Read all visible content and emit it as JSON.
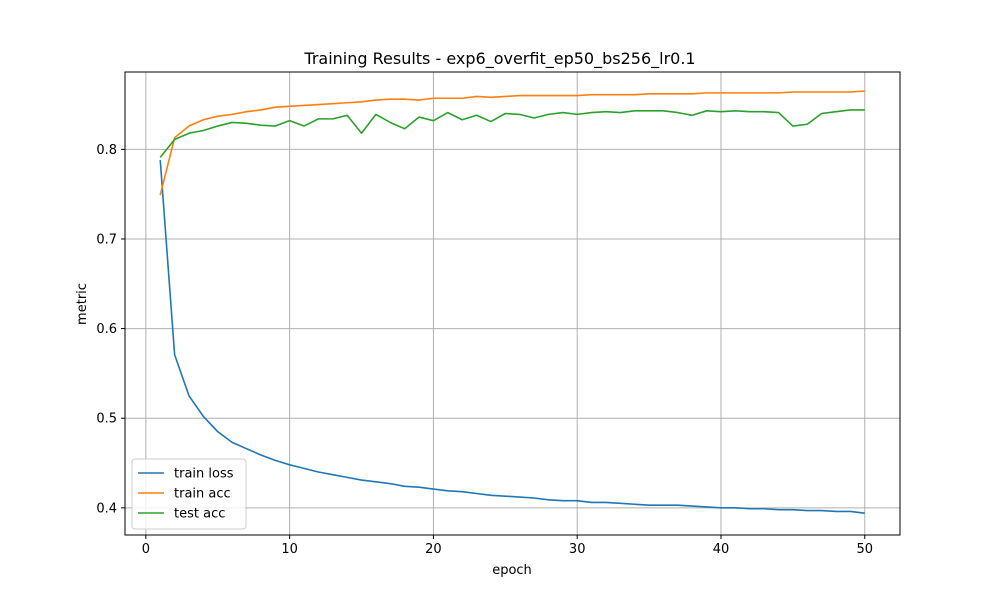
{
  "chart_data": {
    "type": "line",
    "title": "Training Results - exp6_overfit_ep50_bs256_lr0.1",
    "xlabel": "epoch",
    "ylabel": "metric",
    "xlim": [
      -1.45,
      52.45
    ],
    "ylim": [
      0.3697,
      0.8863
    ],
    "xticks": [
      0,
      10,
      20,
      30,
      40,
      50
    ],
    "yticks": [
      0.4,
      0.5,
      0.6,
      0.7,
      0.8
    ],
    "ytick_labels": [
      "0.4",
      "0.5",
      "0.6",
      "0.7",
      "0.8"
    ],
    "grid": true,
    "legend_position": "lower-left",
    "x": [
      1,
      2,
      3,
      4,
      5,
      6,
      7,
      8,
      9,
      10,
      11,
      12,
      13,
      14,
      15,
      16,
      17,
      18,
      19,
      20,
      21,
      22,
      23,
      24,
      25,
      26,
      27,
      28,
      29,
      30,
      31,
      32,
      33,
      34,
      35,
      36,
      37,
      38,
      39,
      40,
      41,
      42,
      43,
      44,
      45,
      46,
      47,
      48,
      49,
      50
    ],
    "series": [
      {
        "name": "train loss",
        "color": "#1f77b4",
        "values": [
          0.788,
          0.571,
          0.525,
          0.502,
          0.485,
          0.473,
          0.466,
          0.459,
          0.453,
          0.448,
          0.444,
          0.44,
          0.437,
          0.434,
          0.431,
          0.429,
          0.427,
          0.424,
          0.423,
          0.421,
          0.419,
          0.418,
          0.416,
          0.414,
          0.413,
          0.412,
          0.411,
          0.409,
          0.408,
          0.408,
          0.406,
          0.406,
          0.405,
          0.404,
          0.403,
          0.403,
          0.403,
          0.402,
          0.401,
          0.4,
          0.4,
          0.399,
          0.399,
          0.398,
          0.398,
          0.397,
          0.397,
          0.396,
          0.396,
          0.394
        ]
      },
      {
        "name": "train acc",
        "color": "#ff7f0e",
        "values": [
          0.749,
          0.813,
          0.826,
          0.833,
          0.837,
          0.839,
          0.842,
          0.844,
          0.847,
          0.848,
          0.849,
          0.85,
          0.851,
          0.852,
          0.853,
          0.855,
          0.856,
          0.856,
          0.855,
          0.857,
          0.857,
          0.857,
          0.859,
          0.858,
          0.859,
          0.86,
          0.86,
          0.86,
          0.86,
          0.86,
          0.861,
          0.861,
          0.861,
          0.861,
          0.862,
          0.862,
          0.862,
          0.862,
          0.863,
          0.863,
          0.863,
          0.863,
          0.863,
          0.863,
          0.864,
          0.864,
          0.864,
          0.864,
          0.864,
          0.865
        ]
      },
      {
        "name": "test acc",
        "color": "#2ca02c",
        "values": [
          0.791,
          0.811,
          0.818,
          0.821,
          0.826,
          0.83,
          0.829,
          0.827,
          0.826,
          0.832,
          0.826,
          0.834,
          0.834,
          0.838,
          0.818,
          0.839,
          0.83,
          0.823,
          0.836,
          0.832,
          0.841,
          0.833,
          0.838,
          0.831,
          0.84,
          0.839,
          0.835,
          0.839,
          0.841,
          0.839,
          0.841,
          0.842,
          0.841,
          0.843,
          0.843,
          0.843,
          0.841,
          0.838,
          0.843,
          0.842,
          0.843,
          0.842,
          0.842,
          0.841,
          0.826,
          0.828,
          0.84,
          0.842,
          0.844,
          0.844
        ]
      }
    ]
  }
}
